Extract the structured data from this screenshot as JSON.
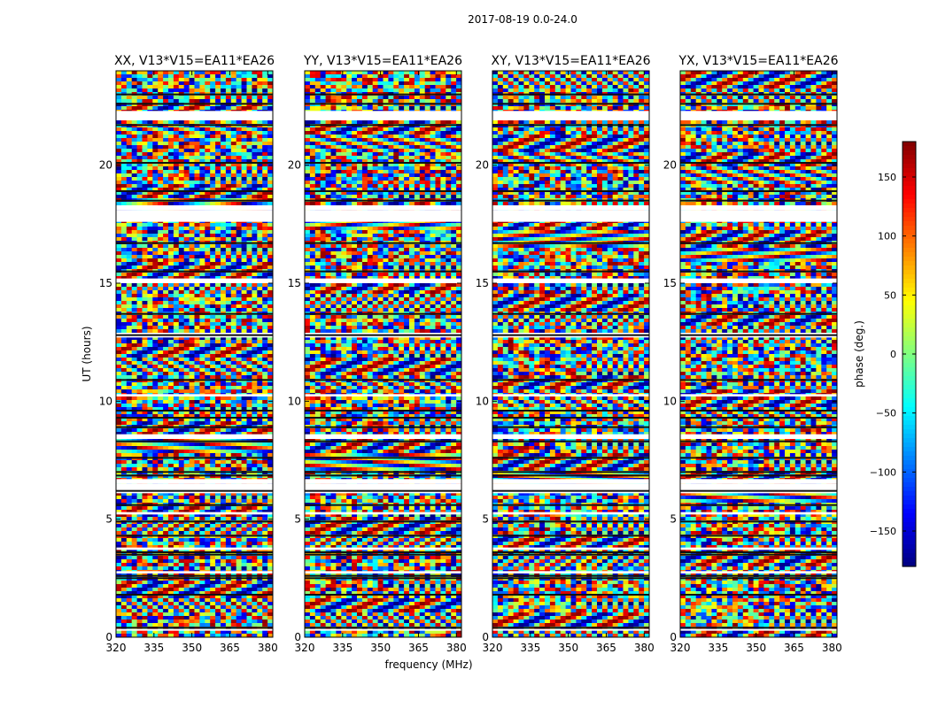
{
  "figure": {
    "suptitle": "2017-08-19 0.0-24.0",
    "ylabel": "UT (hours)",
    "xlabel": "frequency (MHz)"
  },
  "chart_data": {
    "type": "heatmap",
    "colormap": "jet",
    "x_ticks": [
      320,
      335,
      350,
      365,
      380
    ],
    "xlim": [
      320,
      382
    ],
    "y_ticks": [
      0,
      5,
      10,
      15,
      20
    ],
    "ylim": [
      0,
      24
    ],
    "panels": [
      {
        "title": "XX, V13*V15=EA11*EA26"
      },
      {
        "title": "YY, V13*V15=EA11*EA26"
      },
      {
        "title": "XY, V13*V15=EA11*EA26"
      },
      {
        "title": "YX, V13*V15=EA11*EA26"
      }
    ],
    "colorbar": {
      "label": "phase (deg.)",
      "ticks": [
        150,
        100,
        50,
        0,
        -50,
        -100,
        -150
      ],
      "range": [
        -180,
        180
      ]
    },
    "blank_bands_hours": [
      [
        21.9,
        22.3
      ],
      [
        18.1,
        18.3
      ],
      [
        17.6,
        18.1
      ],
      [
        15.0,
        15.2
      ],
      [
        12.7,
        12.9
      ],
      [
        10.2,
        10.3
      ],
      [
        8.4,
        8.6
      ],
      [
        6.5,
        6.7
      ],
      [
        6.1,
        6.5
      ],
      [
        5.2,
        5.3
      ],
      [
        3.7,
        3.8
      ],
      [
        2.7,
        2.8
      ],
      [
        0.3,
        0.35
      ]
    ],
    "dark_lines_hours": [
      23.0,
      22.6,
      21.7,
      20.1,
      18.9,
      18.5,
      16.7,
      15.5,
      13.7,
      12.8,
      10.9,
      9.6,
      9.3,
      8.9,
      8.3,
      7.6,
      7.0,
      6.85,
      6.2,
      5.6,
      4.9,
      4.3,
      3.6,
      3.5,
      2.6,
      2.5,
      1.8,
      0.4
    ]
  }
}
